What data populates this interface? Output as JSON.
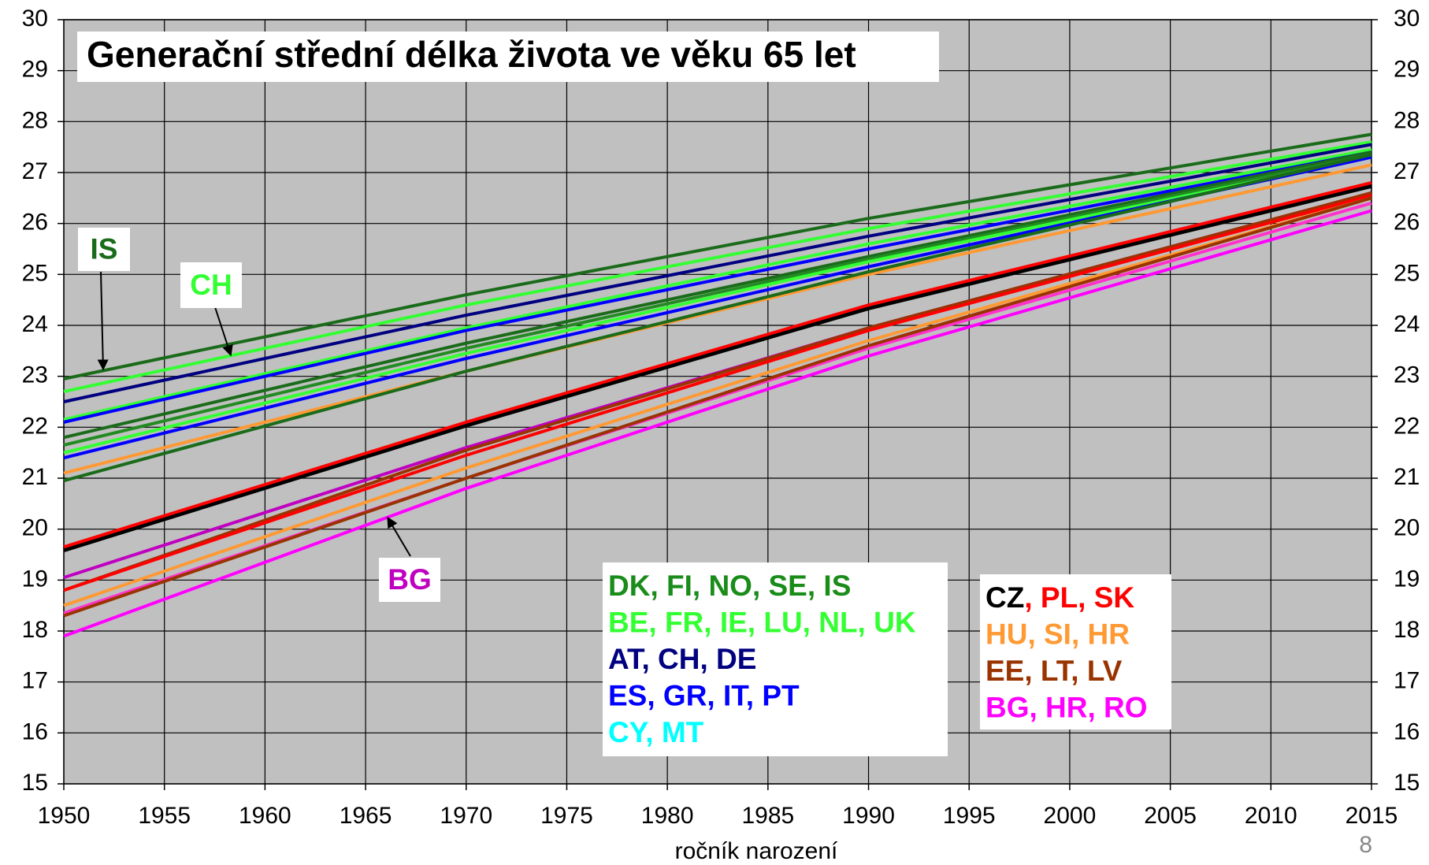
{
  "chart_data": {
    "type": "line",
    "title": "Generační střední délka života ve věku 65 let",
    "x_label": "ročník narození",
    "page_number": "8",
    "background": "#c0c0c0",
    "grid": true,
    "x": [
      1950,
      1970,
      1990,
      2015
    ],
    "xlim": [
      1950,
      2015
    ],
    "xticks": [
      1950,
      1955,
      1960,
      1965,
      1970,
      1975,
      1980,
      1985,
      1990,
      1995,
      2000,
      2005,
      2010,
      2015
    ],
    "ylim": [
      15,
      30
    ],
    "yticks": [
      15,
      16,
      17,
      18,
      19,
      20,
      21,
      22,
      23,
      24,
      25,
      26,
      27,
      28,
      29,
      30
    ],
    "y2lim": [
      15,
      30
    ],
    "y2ticks": [
      15,
      16,
      17,
      18,
      19,
      20,
      21,
      22,
      23,
      24,
      25,
      26,
      27,
      28,
      29,
      30
    ],
    "series": [
      {
        "color": "#1a6b1a",
        "values": [
          22.95,
          24.6,
          26.1,
          27.75
        ]
      },
      {
        "color": "#33ff33",
        "values": [
          22.7,
          24.4,
          25.9,
          27.6
        ]
      },
      {
        "color": "#000080",
        "values": [
          22.5,
          24.2,
          25.75,
          27.55
        ]
      },
      {
        "color": "#33ff33",
        "values": [
          22.15,
          23.95,
          25.6,
          27.45
        ]
      },
      {
        "color": "#0000ff",
        "values": [
          22.1,
          23.9,
          25.5,
          27.4
        ]
      },
      {
        "color": "#1a6b1a",
        "values": [
          21.8,
          23.65,
          25.35,
          27.4
        ]
      },
      {
        "color": "#228b22",
        "values": [
          21.65,
          23.55,
          25.3,
          27.35
        ]
      },
      {
        "color": "#33ff33",
        "values": [
          21.5,
          23.45,
          25.25,
          27.3
        ]
      },
      {
        "color": "#0000ff",
        "values": [
          21.4,
          23.35,
          25.15,
          27.3
        ]
      },
      {
        "color": "#ff9933",
        "values": [
          21.1,
          23.1,
          25.0,
          27.15
        ]
      },
      {
        "color": "#1a6b1a",
        "values": [
          20.95,
          23.1,
          25.05,
          27.35
        ]
      },
      {
        "color": "#000000",
        "line_width": 7,
        "values": [
          19.6,
          22.05,
          24.35,
          26.75
        ]
      },
      {
        "color": "#ff0000",
        "values": [
          19.65,
          22.1,
          24.4,
          26.8
        ]
      },
      {
        "color": "#c000c0",
        "values": [
          19.05,
          21.6,
          23.95,
          26.6
        ]
      },
      {
        "color": "#993300",
        "values": [
          18.8,
          21.55,
          23.95,
          26.6
        ]
      },
      {
        "color": "#ff0000",
        "values": [
          18.8,
          21.45,
          23.9,
          26.55
        ]
      },
      {
        "color": "#ff9933",
        "values": [
          18.5,
          21.2,
          23.7,
          26.5
        ]
      },
      {
        "color": "#ff33cc",
        "values": [
          18.35,
          21.0,
          23.55,
          26.4
        ]
      },
      {
        "color": "#993300",
        "values": [
          18.3,
          21.0,
          23.6,
          26.5
        ]
      },
      {
        "color": "#ff00ff",
        "values": [
          17.9,
          20.8,
          23.4,
          26.25
        ]
      }
    ],
    "annotations": [
      {
        "text": "IS",
        "color": "#1a6b1a"
      },
      {
        "text": "CH",
        "color": "#33ff33"
      },
      {
        "text": "BG",
        "color": "#c000c0"
      }
    ],
    "legend_boxes": [
      [
        [
          {
            "text": "DK, FI, NO, SE, IS",
            "color": "#1a8c1a"
          }
        ],
        [
          {
            "text": "BE, FR, IE, LU, NL, UK",
            "color": "#33ff33"
          }
        ],
        [
          {
            "text": "AT, CH, DE",
            "color": "#000080"
          }
        ],
        [
          {
            "text": "ES, GR, IT, PT",
            "color": "#0000ff"
          }
        ],
        [
          {
            "text": "CY, MT",
            "color": "#00ffff"
          }
        ]
      ],
      [
        [
          {
            "text": "CZ",
            "color": "#000000"
          },
          {
            "text": ", PL, SK",
            "color": "#ff0000"
          }
        ],
        [
          {
            "text": "HU, SI, HR",
            "color": "#ff9933"
          }
        ],
        [
          {
            "text": "EE, LT, LV",
            "color": "#993300"
          }
        ],
        [
          {
            "text": "BG, HR, RO",
            "color": "#ff00ff"
          }
        ]
      ]
    ]
  }
}
